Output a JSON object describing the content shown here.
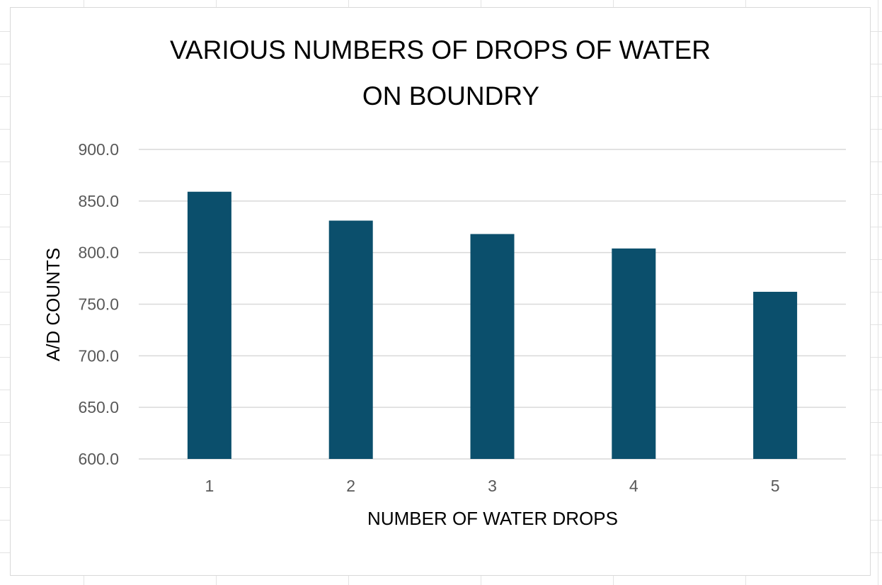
{
  "chart_data": {
    "type": "bar",
    "title_lines": [
      "VARIOUS NUMBERS OF DROPS OF WATER",
      "ON BOUNDRY"
    ],
    "xlabel": "NUMBER OF WATER DROPS",
    "ylabel": "A/D COUNTS",
    "categories": [
      "1",
      "2",
      "3",
      "4",
      "5"
    ],
    "values": [
      859,
      831,
      818,
      804,
      762
    ],
    "ylim": [
      600,
      900
    ],
    "yticks": [
      "600.0",
      "650.0",
      "700.0",
      "750.0",
      "800.0",
      "850.0",
      "900.0"
    ],
    "grid": true,
    "legend": "none",
    "bar_color": "#0b4f6c",
    "grid_color": "#d9d9d9",
    "tick_color": "#595959"
  }
}
